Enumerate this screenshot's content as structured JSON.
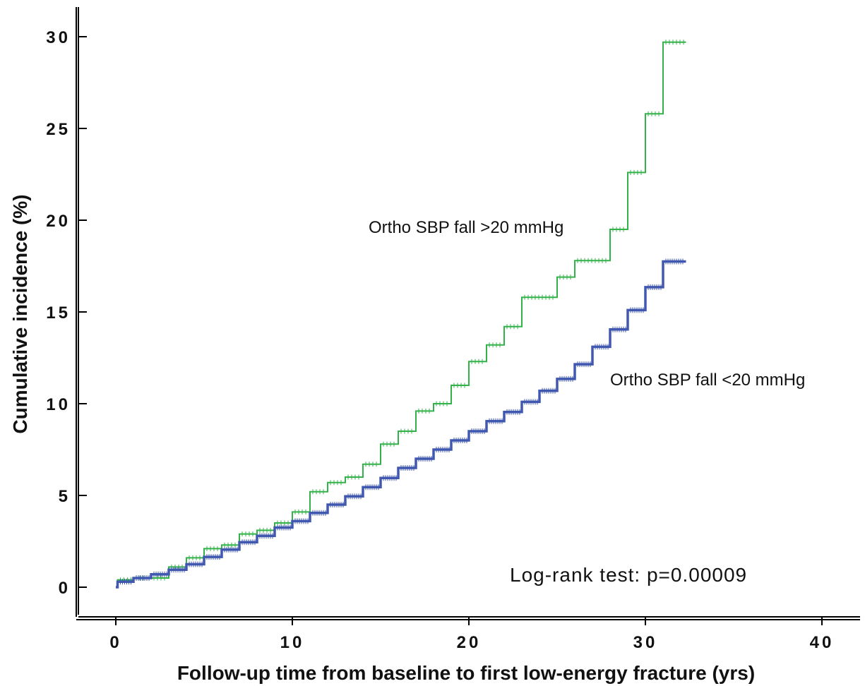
{
  "chart_data": {
    "type": "line",
    "subtype": "kaplan-meier-cumulative-incidence-step",
    "xlabel": "Follow-up time from baseline to first low-energy fracture (yrs)",
    "ylabel": "Cumulative incidence (%)",
    "xlim": [
      0,
      40
    ],
    "ylim": [
      0,
      30
    ],
    "x_ticks": [
      0,
      10,
      20,
      30,
      40
    ],
    "y_ticks": [
      0,
      5,
      10,
      15,
      20,
      25,
      30
    ],
    "x_tick_labels": [
      "0",
      "10",
      "20",
      "30",
      "40"
    ],
    "y_tick_labels": [
      "0",
      "5",
      "10",
      "15",
      "20",
      "25",
      "30"
    ],
    "grid": false,
    "legend": "none (series labelled inline)",
    "censor_marks": true,
    "series": [
      {
        "name": "Ortho SBP fall >20 mmHg",
        "color": "#33b24a",
        "style": "thin",
        "x": [
          0,
          0.1,
          1,
          2,
          3,
          4,
          5,
          6,
          7,
          8,
          9,
          10,
          11,
          12,
          13,
          14,
          15,
          16,
          17,
          18,
          19,
          20,
          21,
          22,
          23,
          25,
          26,
          28,
          29,
          30,
          31,
          32.3
        ],
        "y": [
          0,
          0.4,
          0.5,
          0.5,
          1.1,
          1.6,
          2.1,
          2.3,
          2.9,
          3.1,
          3.5,
          4.1,
          5.2,
          5.7,
          6.0,
          6.7,
          7.8,
          8.5,
          9.6,
          10.0,
          11.0,
          12.3,
          13.2,
          14.2,
          15.8,
          16.9,
          17.8,
          19.5,
          22.6,
          25.8,
          29.7,
          29.7
        ]
      },
      {
        "name": "Ortho SBP fall <20 mmHg",
        "color": "#4158b0",
        "style": "thick",
        "x": [
          0,
          0.1,
          1,
          2,
          3,
          4,
          5,
          6,
          7,
          8,
          9,
          10,
          11,
          12,
          13,
          14,
          15,
          16,
          17,
          18,
          19,
          20,
          21,
          22,
          23,
          24,
          25,
          26,
          27,
          28,
          29,
          30,
          31,
          32.3
        ],
        "y": [
          0,
          0.3,
          0.5,
          0.7,
          0.95,
          1.25,
          1.65,
          2.05,
          2.45,
          2.8,
          3.25,
          3.6,
          4.05,
          4.5,
          4.95,
          5.45,
          5.95,
          6.5,
          7.0,
          7.5,
          8.0,
          8.5,
          9.05,
          9.55,
          10.1,
          10.7,
          11.35,
          12.15,
          13.1,
          14.05,
          15.1,
          16.35,
          17.75,
          17.75
        ]
      }
    ],
    "annotations": {
      "label_high": "Ortho SBP fall >20 mmHg",
      "label_low": "Ortho SBP fall <20 mmHg",
      "logrank": "Log-rank test: p=0.00009"
    }
  }
}
